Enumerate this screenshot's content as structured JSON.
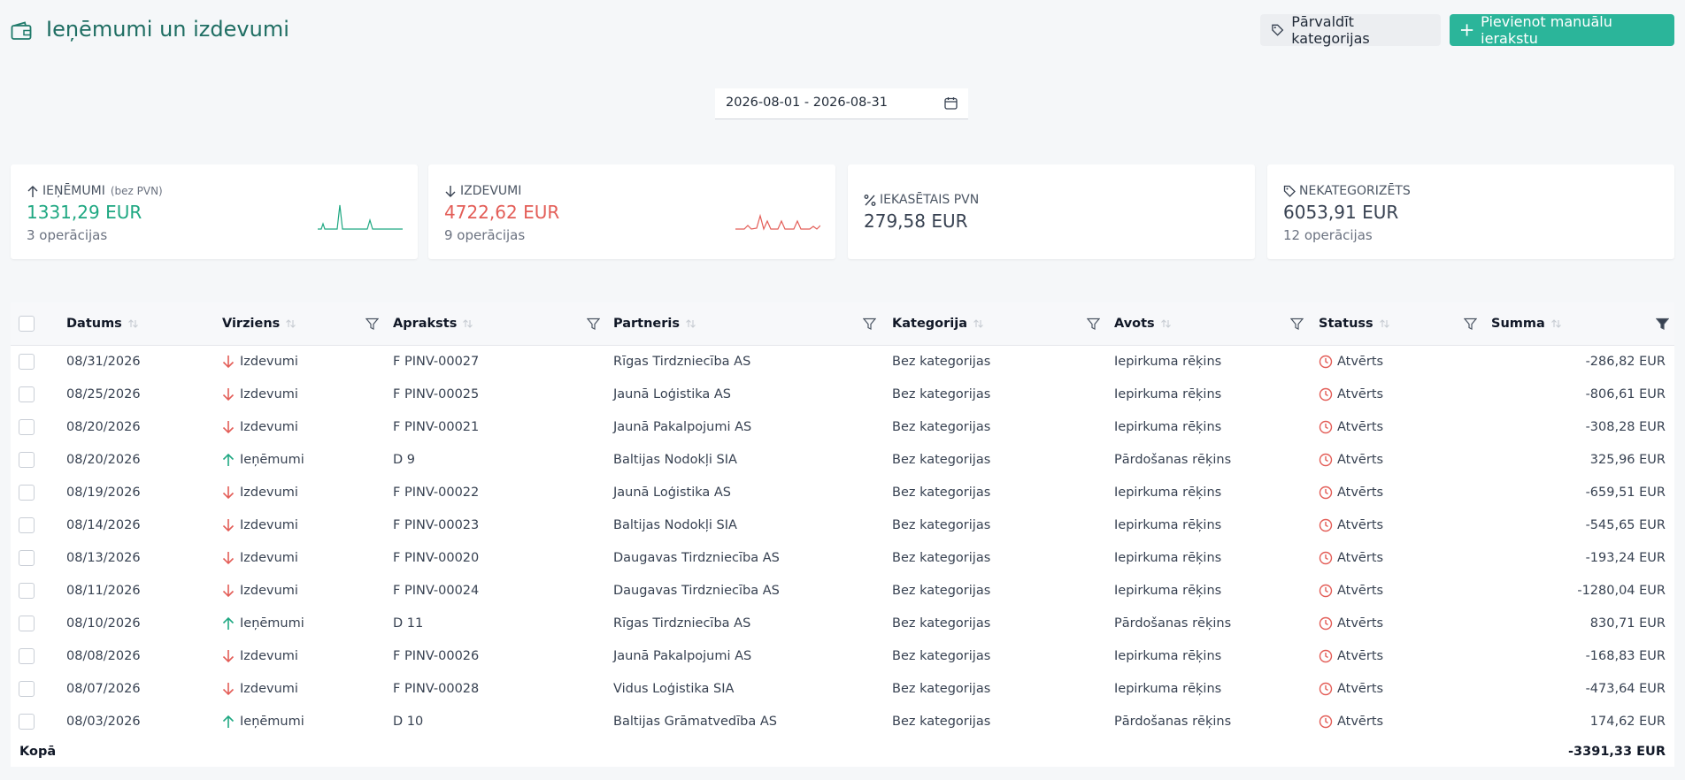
{
  "header": {
    "title": "Ieņēmumi un izdevumi",
    "buttons": [
      "Pārvaldīt kategorijas",
      "Pievienot manuālu ierakstu"
    ]
  },
  "date_range": "2026-08-01 - 2026-08-31",
  "cards": [
    {
      "label": "IEŅĒMUMI",
      "note": "(bez PVN)",
      "value": "1331,29 EUR",
      "sub": "3 operācijas"
    },
    {
      "label": "IZDEVUMI",
      "value": "4722,62 EUR",
      "sub": "9 operācijas"
    },
    {
      "label": "IEKASĒTAIS PVN",
      "value": "279,58 EUR"
    },
    {
      "label": "NEKATEGORIZĒTS",
      "value": "6053,91 EUR",
      "sub": "12 operācijas"
    }
  ],
  "table": {
    "columns": [
      "Datums",
      "Virziens",
      "Apraksts",
      "Partneris",
      "Kategorija",
      "Avots",
      "Statuss",
      "Summa"
    ],
    "rows": [
      [
        "08/31/2026",
        "Izdevumi",
        "F PINV-00027",
        "Rīgas Tirdzniecība AS",
        "Bez kategorijas",
        "Iepirkuma rēķins",
        "Atvērts",
        "-286,82 EUR"
      ],
      [
        "08/25/2026",
        "Izdevumi",
        "F PINV-00025",
        "Jaunā Loģistika AS",
        "Bez kategorijas",
        "Iepirkuma rēķins",
        "Atvērts",
        "-806,61 EUR"
      ],
      [
        "08/20/2026",
        "Izdevumi",
        "F PINV-00021",
        "Jaunā Pakalpojumi AS",
        "Bez kategorijas",
        "Iepirkuma rēķins",
        "Atvērts",
        "-308,28 EUR"
      ],
      [
        "08/20/2026",
        "Ieņēmumi",
        "D 9",
        "Baltijas Nodokļi SIA",
        "Bez kategorijas",
        "Pārdošanas rēķins",
        "Atvērts",
        "325,96 EUR"
      ],
      [
        "08/19/2026",
        "Izdevumi",
        "F PINV-00022",
        "Jaunā Loģistika AS",
        "Bez kategorijas",
        "Iepirkuma rēķins",
        "Atvērts",
        "-659,51 EUR"
      ],
      [
        "08/14/2026",
        "Izdevumi",
        "F PINV-00023",
        "Baltijas Nodokļi SIA",
        "Bez kategorijas",
        "Iepirkuma rēķins",
        "Atvērts",
        "-545,65 EUR"
      ],
      [
        "08/13/2026",
        "Izdevumi",
        "F PINV-00020",
        "Daugavas Tirdzniecība AS",
        "Bez kategorijas",
        "Iepirkuma rēķins",
        "Atvērts",
        "-193,24 EUR"
      ],
      [
        "08/11/2026",
        "Izdevumi",
        "F PINV-00024",
        "Daugavas Tirdzniecība AS",
        "Bez kategorijas",
        "Iepirkuma rēķins",
        "Atvērts",
        "-1280,04 EUR"
      ],
      [
        "08/10/2026",
        "Ieņēmumi",
        "D 11",
        "Rīgas Tirdzniecība AS",
        "Bez kategorijas",
        "Pārdošanas rēķins",
        "Atvērts",
        "830,71 EUR"
      ],
      [
        "08/08/2026",
        "Izdevumi",
        "F PINV-00026",
        "Jaunā Pakalpojumi AS",
        "Bez kategorijas",
        "Iepirkuma rēķins",
        "Atvērts",
        "-168,83 EUR"
      ],
      [
        "08/07/2026",
        "Izdevumi",
        "F PINV-00028",
        "Vidus Loģistika SIA",
        "Bez kategorijas",
        "Iepirkuma rēķins",
        "Atvērts",
        "-473,64 EUR"
      ],
      [
        "08/03/2026",
        "Ieņēmumi",
        "D 10",
        "Baltijas Grāmatvedība AS",
        "Bez kategorijas",
        "Pārdošanas rēķins",
        "Atvērts",
        "174,62 EUR"
      ]
    ],
    "total_label": "Kopā",
    "total": "-3391,33 EUR"
  }
}
